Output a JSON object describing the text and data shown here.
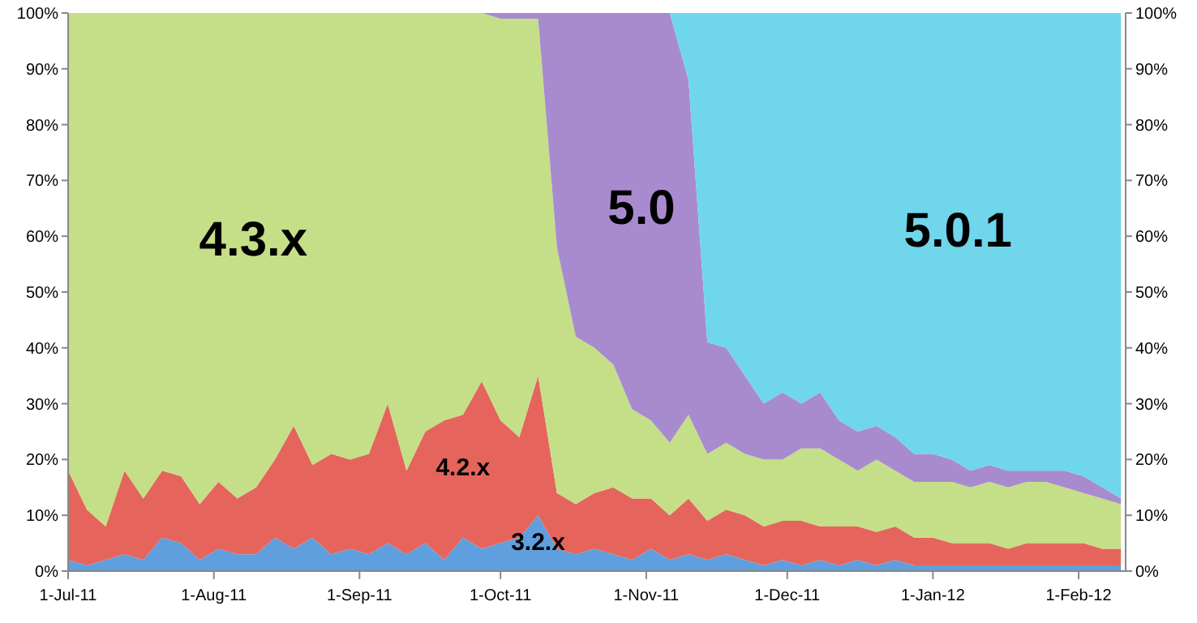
{
  "chart_data": {
    "type": "area",
    "stacked": true,
    "x": [
      "2011-07-01",
      "2011-07-05",
      "2011-07-09",
      "2011-07-13",
      "2011-07-17",
      "2011-07-21",
      "2011-07-25",
      "2011-07-29",
      "2011-08-02",
      "2011-08-06",
      "2011-08-10",
      "2011-08-14",
      "2011-08-18",
      "2011-08-22",
      "2011-08-26",
      "2011-08-30",
      "2011-09-03",
      "2011-09-07",
      "2011-09-11",
      "2011-09-15",
      "2011-09-19",
      "2011-09-23",
      "2011-09-27",
      "2011-10-01",
      "2011-10-05",
      "2011-10-09",
      "2011-10-13",
      "2011-10-17",
      "2011-10-21",
      "2011-10-25",
      "2011-10-29",
      "2011-11-02",
      "2011-11-06",
      "2011-11-10",
      "2011-11-14",
      "2011-11-18",
      "2011-11-22",
      "2011-11-26",
      "2011-11-30",
      "2011-12-04",
      "2011-12-08",
      "2011-12-12",
      "2011-12-16",
      "2011-12-20",
      "2011-12-24",
      "2011-12-28",
      "2012-01-01",
      "2012-01-05",
      "2012-01-09",
      "2012-01-13",
      "2012-01-17",
      "2012-01-21",
      "2012-01-25",
      "2012-01-29",
      "2012-02-02",
      "2012-02-06",
      "2012-02-10"
    ],
    "series": [
      {
        "name": "3.2.x",
        "color": "#5f9fde",
        "values": [
          2,
          1,
          2,
          3,
          2,
          6,
          5,
          2,
          4,
          3,
          3,
          6,
          4,
          6,
          3,
          4,
          3,
          5,
          3,
          5,
          2,
          6,
          4,
          5,
          6,
          10,
          4,
          3,
          4,
          3,
          2,
          4,
          2,
          3,
          2,
          3,
          2,
          1,
          2,
          1,
          2,
          1,
          2,
          1,
          2,
          1,
          1,
          1,
          1,
          1,
          1,
          1,
          1,
          1,
          1,
          1,
          1
        ]
      },
      {
        "name": "4.2.x",
        "color": "#e5655d",
        "values": [
          16,
          10,
          6,
          15,
          11,
          12,
          12,
          10,
          12,
          10,
          12,
          14,
          22,
          13,
          18,
          16,
          18,
          25,
          15,
          20,
          25,
          22,
          30,
          22,
          18,
          25,
          10,
          9,
          10,
          12,
          11,
          9,
          8,
          10,
          7,
          8,
          8,
          7,
          7,
          8,
          6,
          7,
          6,
          6,
          6,
          5,
          5,
          4,
          4,
          4,
          3,
          4,
          4,
          4,
          4,
          3,
          3
        ]
      },
      {
        "name": "4.3.x",
        "color": "#c4df87",
        "values": [
          82,
          89,
          92,
          82,
          87,
          82,
          83,
          88,
          84,
          87,
          85,
          80,
          74,
          81,
          79,
          80,
          79,
          70,
          82,
          75,
          73,
          72,
          66,
          72,
          75,
          64,
          44,
          30,
          26,
          22,
          16,
          14,
          13,
          15,
          12,
          12,
          11,
          12,
          11,
          13,
          14,
          12,
          10,
          13,
          10,
          10,
          10,
          11,
          10,
          11,
          11,
          11,
          11,
          10,
          9,
          9,
          8
        ]
      },
      {
        "name": "5.0",
        "color": "#a88bcf",
        "values": [
          0,
          0,
          0,
          0,
          0,
          0,
          0,
          0,
          0,
          0,
          0,
          0,
          0,
          0,
          0,
          0,
          0,
          0,
          0,
          0,
          0,
          0,
          0,
          1,
          1,
          1,
          42,
          58,
          60,
          63,
          71,
          73,
          77,
          60,
          20,
          17,
          14,
          10,
          12,
          8,
          10,
          7,
          7,
          6,
          6,
          5,
          5,
          4,
          3,
          3,
          3,
          2,
          2,
          3,
          3,
          2,
          1
        ]
      },
      {
        "name": "5.0.1",
        "color": "#6fd6ec",
        "values": [
          0,
          0,
          0,
          0,
          0,
          0,
          0,
          0,
          0,
          0,
          0,
          0,
          0,
          0,
          0,
          0,
          0,
          0,
          0,
          0,
          0,
          0,
          0,
          0,
          0,
          0,
          0,
          0,
          0,
          0,
          0,
          0,
          0,
          12,
          59,
          60,
          65,
          70,
          68,
          70,
          68,
          73,
          75,
          74,
          76,
          79,
          79,
          80,
          82,
          81,
          82,
          82,
          82,
          82,
          83,
          85,
          87
        ]
      }
    ],
    "xlim": [
      "2011-07-01",
      "2012-02-11"
    ],
    "xticks": [
      {
        "value": "2011-07-01",
        "label": "1-Jul-11"
      },
      {
        "value": "2011-08-01",
        "label": "1-Aug-11"
      },
      {
        "value": "2011-09-01",
        "label": "1-Sep-11"
      },
      {
        "value": "2011-10-01",
        "label": "1-Oct-11"
      },
      {
        "value": "2011-11-01",
        "label": "1-Nov-11"
      },
      {
        "value": "2011-12-01",
        "label": "1-Dec-11"
      },
      {
        "value": "2012-01-01",
        "label": "1-Jan-12"
      },
      {
        "value": "2012-02-01",
        "label": "1-Feb-12"
      }
    ],
    "ylim": [
      0,
      100
    ],
    "yticks": [
      {
        "value": 0,
        "label": "0%"
      },
      {
        "value": 10,
        "label": "10%"
      },
      {
        "value": 20,
        "label": "20%"
      },
      {
        "value": 30,
        "label": "30%"
      },
      {
        "value": 40,
        "label": "40%"
      },
      {
        "value": 50,
        "label": "50%"
      },
      {
        "value": 60,
        "label": "60%"
      },
      {
        "value": 70,
        "label": "70%"
      },
      {
        "value": 80,
        "label": "80%"
      },
      {
        "value": 90,
        "label": "90%"
      },
      {
        "value": 100,
        "label": "100%"
      }
    ],
    "y2lim": [
      0,
      100
    ],
    "y2ticks": [
      {
        "value": 0,
        "label": "0%"
      },
      {
        "value": 10,
        "label": "10%"
      },
      {
        "value": 20,
        "label": "20%"
      },
      {
        "value": 30,
        "label": "30%"
      },
      {
        "value": 40,
        "label": "40%"
      },
      {
        "value": 50,
        "label": "50%"
      },
      {
        "value": 60,
        "label": "60%"
      },
      {
        "value": 70,
        "label": "70%"
      },
      {
        "value": 80,
        "label": "80%"
      },
      {
        "value": 90,
        "label": "90%"
      },
      {
        "value": 100,
        "label": "100%"
      }
    ],
    "grid": false,
    "legend": false
  }
}
